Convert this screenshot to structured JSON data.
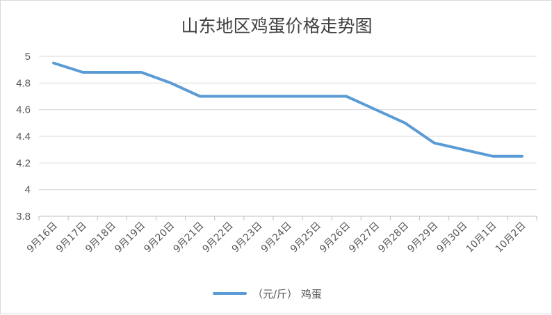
{
  "chart_data": {
    "type": "line",
    "title": "山东地区鸡蛋价格走势图",
    "xlabel": "",
    "ylabel": "",
    "ylim": [
      3.8,
      5
    ],
    "yticks": [
      "3.8",
      "4",
      "4.2",
      "4.4",
      "4.6",
      "4.8",
      "5"
    ],
    "categories": [
      "9月16日",
      "9月17日",
      "9月18日",
      "9月19日",
      "9月20日",
      "9月21日",
      "9月22日",
      "9月23日",
      "9月24日",
      "9月25日",
      "9月26日",
      "9月27日",
      "9月28日",
      "9月29日",
      "9月30日",
      "10月1日",
      "10月2日"
    ],
    "series": [
      {
        "name": "（元/斤） 鸡蛋",
        "color": "#5b9bd5",
        "values": [
          4.95,
          4.88,
          4.88,
          4.88,
          4.8,
          4.7,
          4.7,
          4.7,
          4.7,
          4.7,
          4.7,
          4.6,
          4.5,
          4.35,
          4.3,
          4.25,
          4.25
        ]
      }
    ],
    "grid": true,
    "legend": "bottom"
  }
}
